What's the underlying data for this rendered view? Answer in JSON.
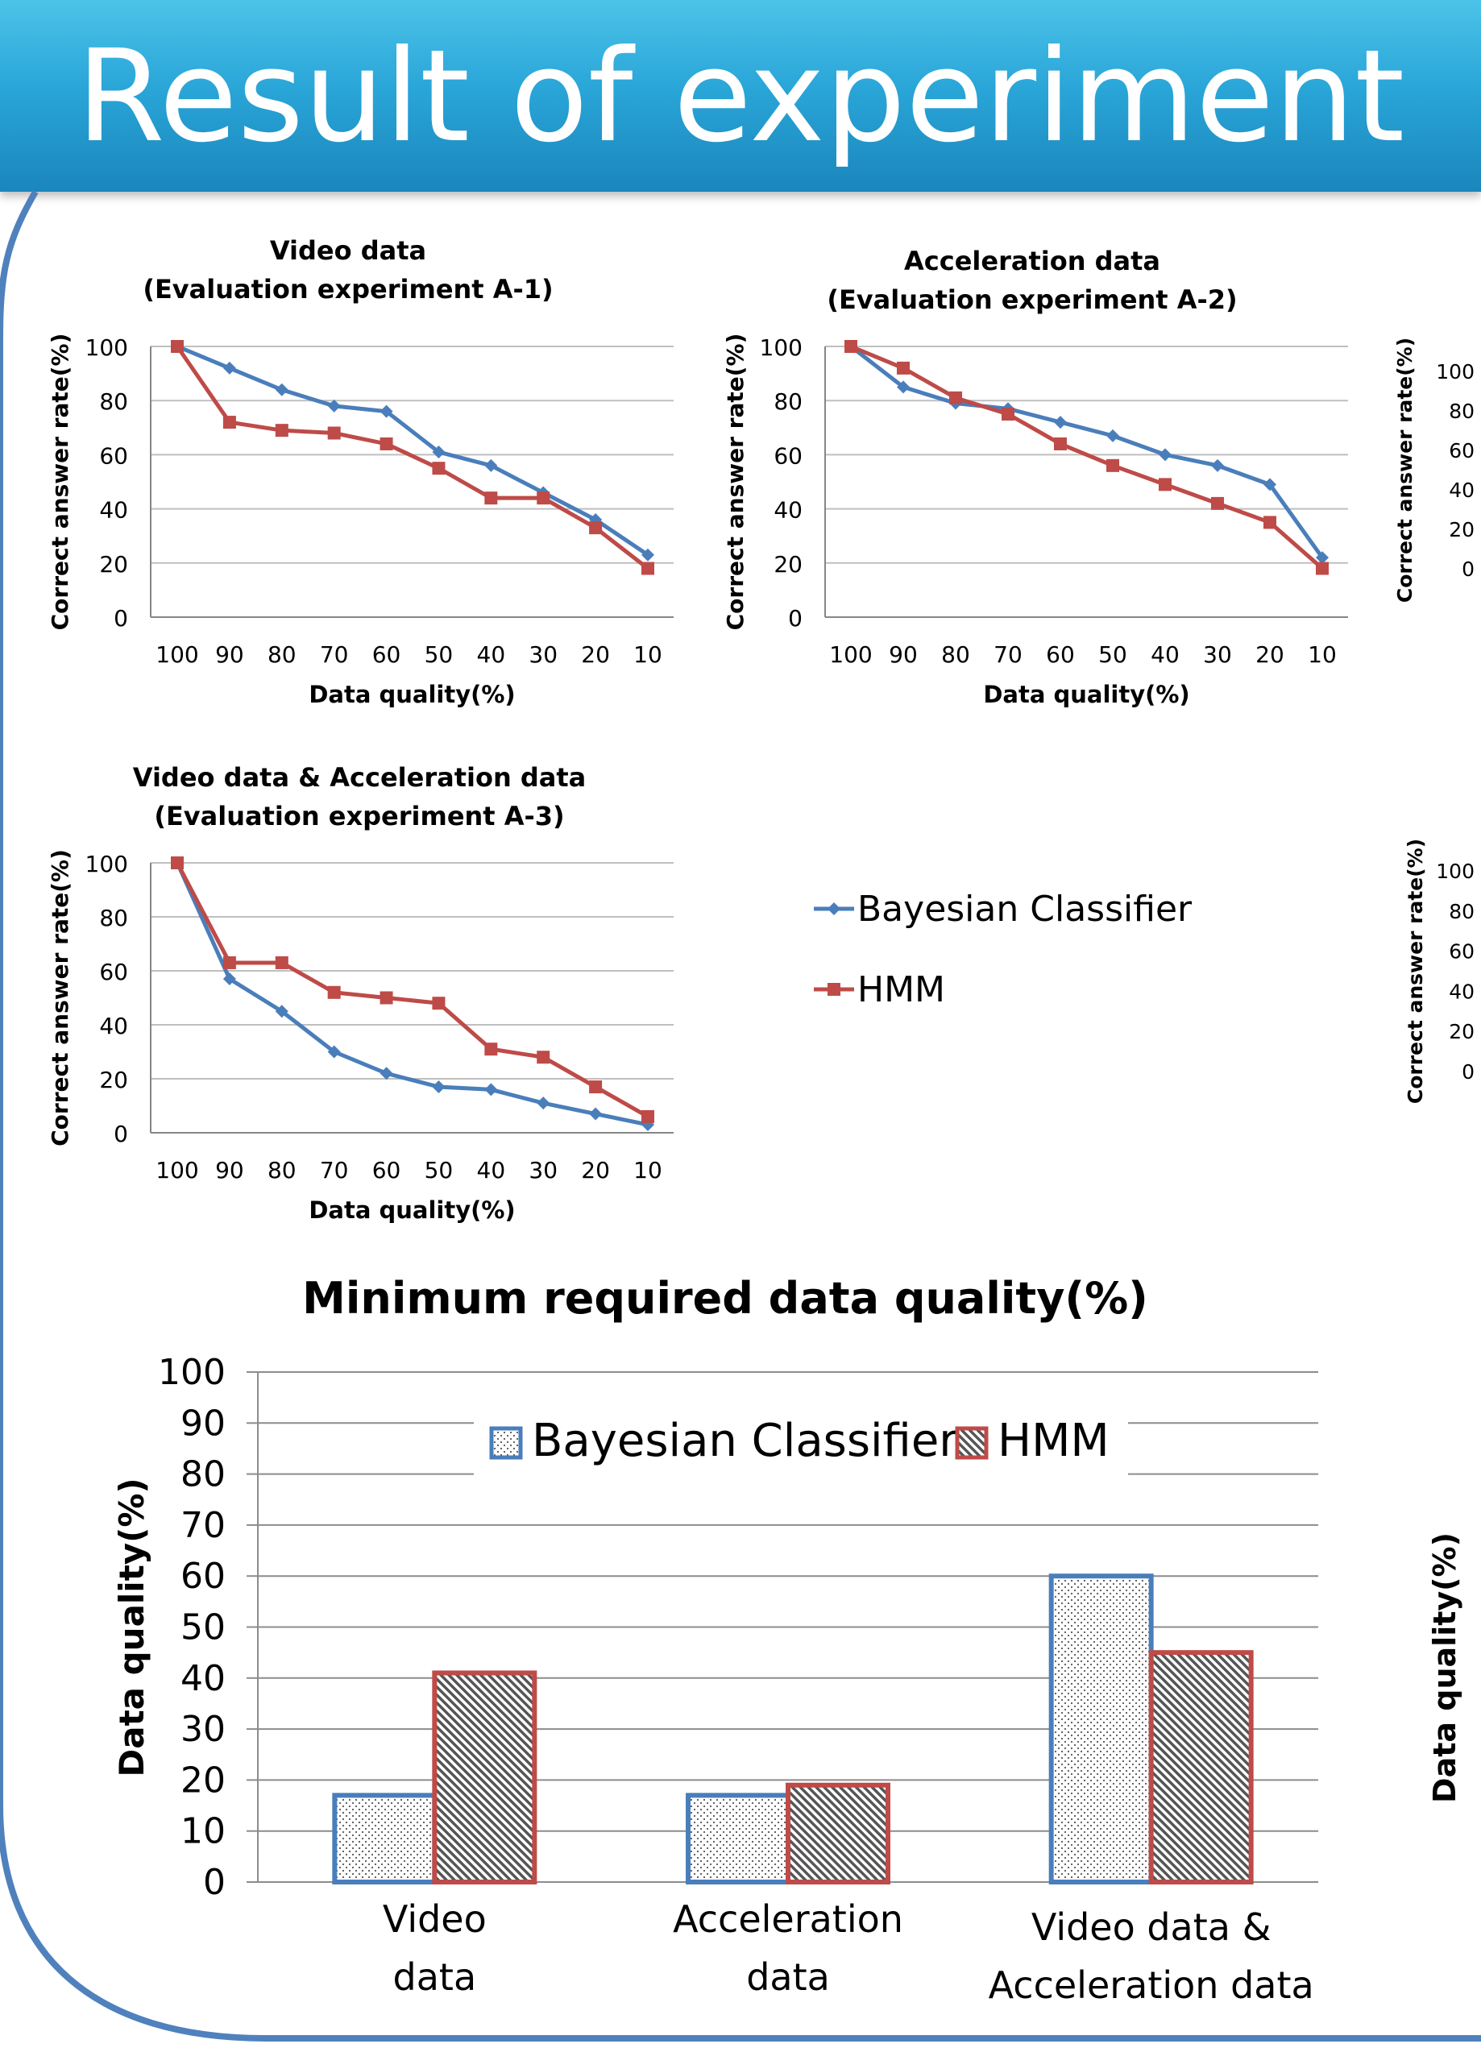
{
  "page": {
    "title": "Result of experiment"
  },
  "legend": {
    "bayesian": "Bayesian Classifier",
    "hmm": "HMM"
  },
  "colors": {
    "bayesian": "#4a7ebb",
    "hmm": "#be4b48",
    "grid": "#bfbfbf",
    "banner": "#2aa6d8",
    "frame": "#4f81bd"
  },
  "chart_data": [
    {
      "type": "line",
      "title_lines": [
        "Video data",
        "(Evaluation experiment A-1)"
      ],
      "xlabel": "Data quality(%)",
      "ylabel": "Correct answer rate(%)",
      "x": [
        "100",
        "90",
        "80",
        "70",
        "60",
        "50",
        "40",
        "30",
        "20",
        "10"
      ],
      "ylim": [
        0,
        100
      ],
      "yticks": [
        0,
        20,
        40,
        60,
        80,
        100
      ],
      "grid": true,
      "series": [
        {
          "name": "Bayesian Classifier",
          "values": [
            100,
            92,
            84,
            78,
            76,
            61,
            56,
            46,
            36,
            23
          ]
        },
        {
          "name": "HMM",
          "values": [
            100,
            72,
            69,
            68,
            64,
            55,
            44,
            44,
            33,
            18
          ]
        }
      ]
    },
    {
      "type": "line",
      "title_lines": [
        "Acceleration data",
        "(Evaluation experiment A-2)"
      ],
      "xlabel": "Data quality(%)",
      "ylabel": "Correct answer rate(%)",
      "x": [
        "100",
        "90",
        "80",
        "70",
        "60",
        "50",
        "40",
        "30",
        "20",
        "10"
      ],
      "ylim": [
        0,
        100
      ],
      "yticks": [
        0,
        20,
        40,
        60,
        80,
        100
      ],
      "grid": true,
      "series": [
        {
          "name": "Bayesian Classifier",
          "values": [
            100,
            85,
            79,
            77,
            72,
            67,
            60,
            56,
            49,
            22
          ]
        },
        {
          "name": "HMM",
          "values": [
            100,
            92,
            81,
            75,
            64,
            56,
            49,
            42,
            35,
            18
          ]
        }
      ]
    },
    {
      "type": "line",
      "title_lines": [
        "Video data & Acceleration data",
        "(Evaluation experiment A-3)"
      ],
      "xlabel": "Data quality(%)",
      "ylabel": "Correct answer rate(%)",
      "x": [
        "100",
        "90",
        "80",
        "70",
        "60",
        "50",
        "40",
        "30",
        "20",
        "10"
      ],
      "ylim": [
        0,
        100
      ],
      "yticks": [
        0,
        20,
        40,
        60,
        80,
        100
      ],
      "grid": true,
      "legend_position": "right",
      "series": [
        {
          "name": "Bayesian Classifier",
          "values": [
            100,
            57,
            45,
            30,
            22,
            17,
            16,
            11,
            7,
            3
          ]
        },
        {
          "name": "HMM",
          "values": [
            100,
            63,
            63,
            52,
            50,
            48,
            31,
            28,
            17,
            6
          ]
        }
      ]
    },
    {
      "type": "bar",
      "title": "Minimum required data quality(%)",
      "ylabel": "Data quality(%)",
      "categories": [
        [
          "Video",
          "data"
        ],
        [
          "Acceleration",
          "data"
        ],
        [
          "Video data &",
          "Acceleration data"
        ]
      ],
      "ylim": [
        0,
        100
      ],
      "yticks": [
        0,
        10,
        20,
        30,
        40,
        50,
        60,
        70,
        80,
        90,
        100
      ],
      "grid": true,
      "legend_position": "top",
      "series": [
        {
          "name": "Bayesian Classifier",
          "values": [
            17,
            17,
            60
          ]
        },
        {
          "name": "HMM",
          "values": [
            41,
            19,
            45
          ]
        }
      ]
    },
    {
      "type": "line",
      "partial": "cropped at right edge",
      "ylabel": "Correct answer rate(%)",
      "yticks": [
        0,
        20,
        40,
        60,
        80,
        100
      ]
    },
    {
      "type": "line",
      "partial": "cropped at right edge",
      "ylabel": "Correct answer rate(%)",
      "yticks": [
        0,
        20,
        40,
        60,
        80,
        100
      ]
    },
    {
      "type": "bar",
      "partial": "cropped at right edge",
      "ylabel": "Data quality(%)"
    }
  ]
}
